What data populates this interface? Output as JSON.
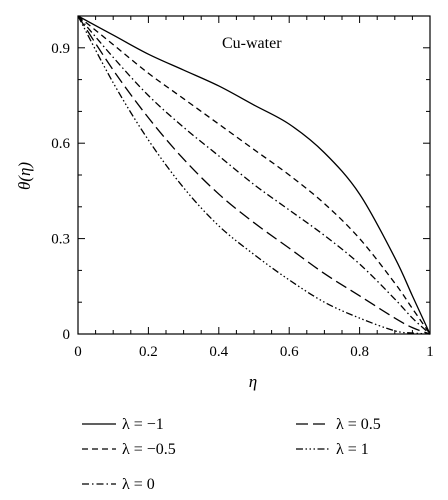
{
  "chart_data": {
    "type": "line",
    "title": "",
    "annotation": "Cu-water",
    "xlabel": "η",
    "ylabel": "θ(η)",
    "xlim": [
      0,
      1
    ],
    "ylim": [
      0,
      1
    ],
    "grid": false,
    "legend_placement": "bottom (below plot, two columns)",
    "x_ticks": [
      {
        "value": 0,
        "label": "0"
      },
      {
        "value": 0.2,
        "label": "0.2"
      },
      {
        "value": 0.4,
        "label": "0.4"
      },
      {
        "value": 0.6,
        "label": "0.6"
      },
      {
        "value": 0.8,
        "label": "0.8"
      },
      {
        "value": 1,
        "label": "1"
      }
    ],
    "y_ticks": [
      {
        "value": 0,
        "label": "0"
      },
      {
        "value": 0.3,
        "label": "0.3"
      },
      {
        "value": 0.6,
        "label": "0.6"
      },
      {
        "value": 0.9,
        "label": "0.9"
      }
    ],
    "x": [
      0,
      0.1,
      0.2,
      0.3,
      0.4,
      0.5,
      0.6,
      0.7,
      0.8,
      0.9,
      0.95,
      1.0
    ],
    "series": [
      {
        "name": "λ = −1",
        "style": "solid",
        "values": [
          1.0,
          0.94,
          0.88,
          0.83,
          0.78,
          0.72,
          0.66,
          0.57,
          0.44,
          0.24,
          0.12,
          0.0
        ]
      },
      {
        "name": "λ = −0.5",
        "style": "dashed",
        "values": [
          1.0,
          0.91,
          0.82,
          0.74,
          0.66,
          0.58,
          0.5,
          0.41,
          0.3,
          0.16,
          0.08,
          0.0
        ]
      },
      {
        "name": "λ = 0",
        "style": "dashdot",
        "values": [
          1.0,
          0.87,
          0.75,
          0.65,
          0.56,
          0.47,
          0.39,
          0.31,
          0.22,
          0.11,
          0.05,
          0.0
        ]
      },
      {
        "name": "λ = 0.5",
        "style": "longdash",
        "values": [
          1.0,
          0.83,
          0.68,
          0.55,
          0.44,
          0.35,
          0.27,
          0.19,
          0.12,
          0.05,
          0.02,
          0.0
        ]
      },
      {
        "name": "λ = 1",
        "style": "dashdotdotdot",
        "values": [
          1.0,
          0.79,
          0.61,
          0.46,
          0.34,
          0.25,
          0.17,
          0.1,
          0.05,
          0.01,
          0.003,
          0.0
        ]
      }
    ]
  }
}
